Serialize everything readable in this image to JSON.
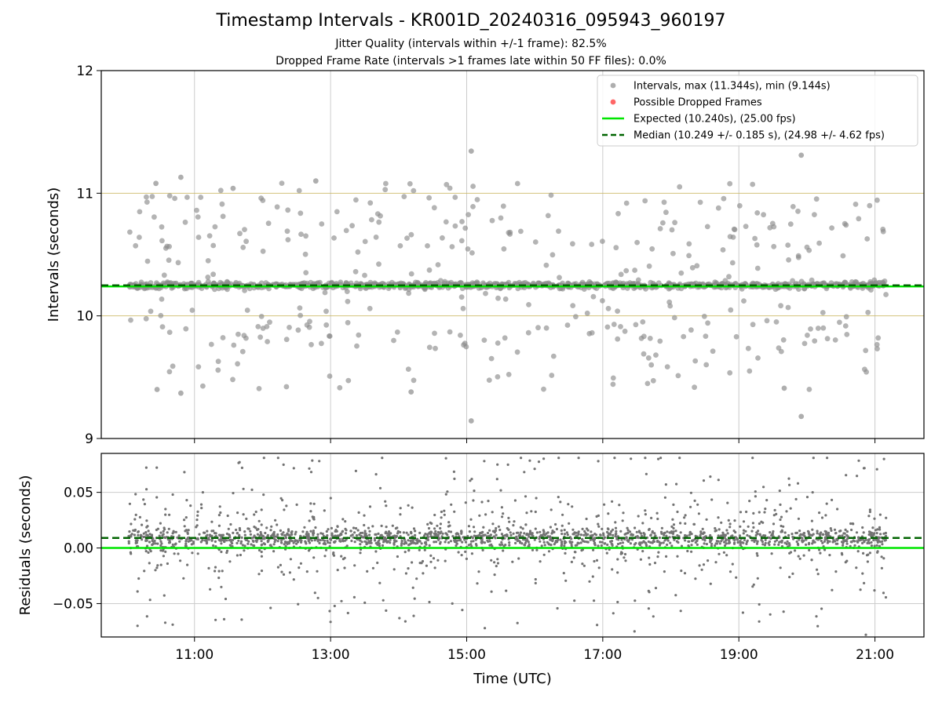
{
  "chart_data": [
    {
      "type": "scatter",
      "title": "Timestamp Intervals - KR001D_20240316_095943_960197",
      "subtitle_lines": [
        "Jitter Quality (intervals within +/-1 frame): 82.5%",
        "Dropped Frame Rate (intervals >1 frames late within 50 FF files): 0.0%"
      ],
      "xlabel": "",
      "ylabel": "Intervals (seconds)",
      "ylim": [
        9,
        12
      ],
      "yticks": [
        "9",
        "10",
        "11",
        "12"
      ],
      "xlim_hours": [
        9.63,
        21.72
      ],
      "xticks": [
        "11:00",
        "13:00",
        "15:00",
        "17:00",
        "19:00",
        "21:00"
      ],
      "grid": true,
      "legend_position": "top-right",
      "legend": [
        "Intervals, max (11.344s), min (9.144s)",
        "Possible Dropped Frames",
        "Expected (10.240s), (25.00 fps)",
        "Median (10.249 +/- 0.185 s), (24.98 +/- 4.62 fps)"
      ],
      "expected_line": 10.24,
      "median_line": 10.249,
      "jitter_band": [
        10.0,
        11.0
      ],
      "series": [
        {
          "name": "Intervals, max (11.344s), min (9.144s)",
          "point_count_approx": 3400,
          "x_range": [
            "10:02",
            "21:10"
          ],
          "core_value": 10.249,
          "max": 11.344,
          "min": 9.144,
          "sample_points": [
            {
              "x": "10:26",
              "y": 11.08
            },
            {
              "x": "10:48",
              "y": 11.13
            },
            {
              "x": "11:34",
              "y": 11.04
            },
            {
              "x": "12:47",
              "y": 11.1
            },
            {
              "x": "15:04",
              "y": 11.344
            },
            {
              "x": "15:04",
              "y": 9.144
            },
            {
              "x": "19:55",
              "y": 11.31
            },
            {
              "x": "19:55",
              "y": 9.18
            },
            {
              "x": "10:27",
              "y": 9.4
            },
            {
              "x": "10:48",
              "y": 9.37
            },
            {
              "x": "14:11",
              "y": 9.38
            },
            {
              "x": "19:40",
              "y": 9.41
            }
          ]
        },
        {
          "name": "Possible Dropped Frames",
          "values": []
        }
      ],
      "colors": {
        "points": "#8c8c8c",
        "dropped": "#ff4040",
        "expected": "#00e600",
        "median": "#006400",
        "band": "#c8b45a"
      }
    },
    {
      "type": "scatter",
      "xlabel": "Time (UTC)",
      "ylabel": "Residuals (seconds)",
      "ylim": [
        -0.08,
        0.085
      ],
      "yticks": [
        "−0.05",
        "0.00",
        "0.05"
      ],
      "xticks": [
        "11:00",
        "13:00",
        "15:00",
        "17:00",
        "19:00",
        "21:00"
      ],
      "grid": true,
      "zero_line": 0.0,
      "median_line": 0.009,
      "series": [
        {
          "name": "Residuals",
          "point_count_approx": 3400,
          "x_range": [
            "10:02",
            "21:10"
          ],
          "core_value": 0.009,
          "sample_points": [
            {
              "x": "11:42",
              "y": 0.072
            },
            {
              "x": "16:56",
              "y": 0.078
            },
            {
              "x": "17:49",
              "y": 0.08
            },
            {
              "x": "21:08",
              "y": 0.08
            },
            {
              "x": "15:16",
              "y": -0.072
            },
            {
              "x": "17:28",
              "y": -0.075
            },
            {
              "x": "20:52",
              "y": -0.078
            }
          ]
        }
      ],
      "colors": {
        "points": "#737373",
        "zero": "#00e600",
        "median": "#006400"
      }
    }
  ]
}
